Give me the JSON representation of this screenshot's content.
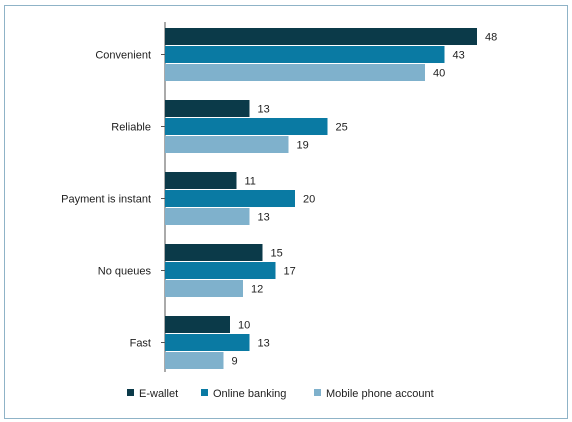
{
  "chart_data": {
    "type": "bar",
    "orientation": "horizontal",
    "categories": [
      "Convenient",
      "Reliable",
      "Payment is instant",
      "No queues",
      "Fast"
    ],
    "series": [
      {
        "name": "E-wallet",
        "color": "#0b3a49",
        "values": [
          48,
          13,
          11,
          15,
          10
        ]
      },
      {
        "name": "Online banking",
        "color": "#0a7aa3",
        "values": [
          43,
          25,
          20,
          17,
          13
        ]
      },
      {
        "name": "Mobile phone account",
        "color": "#7fb1cc",
        "values": [
          40,
          19,
          13,
          12,
          9
        ]
      }
    ],
    "title": "",
    "xlabel": "",
    "ylabel": "",
    "xlim": [
      0,
      48
    ],
    "grid": false,
    "legend": "bottom"
  }
}
